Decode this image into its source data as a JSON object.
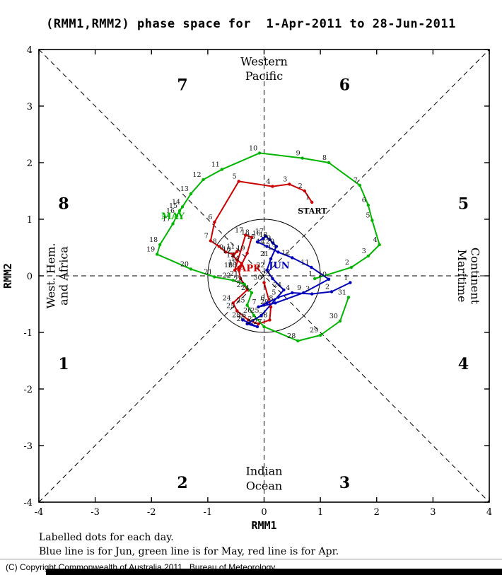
{
  "title": "(RMM1,RMM2) phase space for  1-Apr-2011 to 28-Jun-2011",
  "footer": {
    "line1": "Labelled dots for each day.",
    "line2": "Blue line is for Jun, green line is for May, red line is for Apr.",
    "copyright": "(C) Copyright Commonwealth of Australia 2011 . Bureau of Meteorology"
  },
  "chart_data": {
    "type": "line",
    "title": "(RMM1,RMM2) phase space for 1-Apr-2011 to 28-Jun-2011",
    "xlabel": "RMM1",
    "ylabel": "RMM2",
    "xlim": [
      -4,
      4
    ],
    "ylim": [
      -4,
      4
    ],
    "xticks": [
      -4,
      -3,
      -2,
      -1,
      0,
      1,
      2,
      3,
      4
    ],
    "yticks": [
      -4,
      -3,
      -2,
      -1,
      0,
      1,
      2,
      3,
      4
    ],
    "unit_circle_radius": 1,
    "grid": false,
    "phase_labels": [
      {
        "text": "1",
        "x": -3.56,
        "y": -1.55
      },
      {
        "text": "2",
        "x": -1.45,
        "y": -3.65
      },
      {
        "text": "3",
        "x": 1.43,
        "y": -3.65
      },
      {
        "text": "4",
        "x": 3.54,
        "y": -1.55
      },
      {
        "text": "5",
        "x": 3.54,
        "y": 1.28
      },
      {
        "text": "6",
        "x": 1.43,
        "y": 3.38
      },
      {
        "text": "7",
        "x": -1.45,
        "y": 3.38
      },
      {
        "text": "8",
        "x": -3.56,
        "y": 1.28
      }
    ],
    "region_labels": [
      {
        "text": "Western",
        "x": 0,
        "y": 3.72,
        "rot": 0
      },
      {
        "text": "Pacific",
        "x": 0,
        "y": 3.46,
        "rot": 0
      },
      {
        "text": "Indian",
        "x": 0,
        "y": -3.52,
        "rot": 0
      },
      {
        "text": "Ocean",
        "x": 0,
        "y": -3.78,
        "rot": 0
      },
      {
        "text": "Maritime",
        "x": 3.45,
        "y": 0,
        "rot": 90
      },
      {
        "text": "Continent",
        "x": 3.68,
        "y": 0,
        "rot": 90
      },
      {
        "text": "West. Hem.",
        "x": -3.72,
        "y": 0,
        "rot": -90
      },
      {
        "text": "and Africa",
        "x": -3.49,
        "y": 0,
        "rot": -90
      }
    ],
    "start": {
      "text": "START",
      "x": 0.6,
      "y": 1.1
    },
    "series": [
      {
        "name": "Apr",
        "label": "APR",
        "color": "#cc0000",
        "label_x": -0.25,
        "label_y": 0.08,
        "points": [
          [
            1,
            0.85,
            1.3
          ],
          [
            2,
            0.72,
            1.5
          ],
          [
            3,
            0.45,
            1.62
          ],
          [
            4,
            0.15,
            1.58
          ],
          [
            5,
            -0.45,
            1.67
          ],
          [
            6,
            -0.88,
            0.95
          ],
          [
            7,
            -0.95,
            0.62
          ],
          [
            8,
            -0.8,
            0.52
          ],
          [
            9,
            -0.68,
            0.42
          ],
          [
            10,
            -0.55,
            0.38
          ],
          [
            11,
            -0.48,
            0.43
          ],
          [
            12,
            -0.55,
            0.35
          ],
          [
            13,
            -0.48,
            0.28
          ],
          [
            14,
            -0.4,
            0.22
          ],
          [
            15,
            -0.45,
            0.15
          ],
          [
            16,
            -0.52,
            0.1
          ],
          [
            17,
            -0.33,
            0.72
          ],
          [
            18,
            -0.22,
            0.68
          ],
          [
            19,
            -0.3,
            0.4
          ],
          [
            20,
            -0.45,
            0.1
          ],
          [
            21,
            -0.42,
            -0.05
          ],
          [
            22,
            -0.35,
            -0.15
          ],
          [
            23,
            -0.3,
            -0.25
          ],
          [
            24,
            -0.55,
            -0.48
          ],
          [
            25,
            -0.48,
            -0.62
          ],
          [
            26,
            -0.28,
            -0.78
          ],
          [
            27,
            -0.1,
            -0.85
          ],
          [
            28,
            0.1,
            -0.78
          ],
          [
            29,
            0.12,
            -0.55
          ],
          [
            30,
            0.0,
            -0.12
          ]
        ]
      },
      {
        "name": "May",
        "label": "MAY",
        "color": "#00b400",
        "label_x": -1.62,
        "label_y": 1.0,
        "points": [
          [
            1,
            0.9,
            -0.05
          ],
          [
            2,
            1.55,
            0.15
          ],
          [
            3,
            1.85,
            0.35
          ],
          [
            4,
            2.05,
            0.55
          ],
          [
            5,
            1.92,
            0.98
          ],
          [
            6,
            1.85,
            1.25
          ],
          [
            7,
            1.7,
            1.6
          ],
          [
            8,
            1.15,
            2.0
          ],
          [
            9,
            0.68,
            2.08
          ],
          [
            10,
            -0.08,
            2.17
          ],
          [
            11,
            -0.75,
            1.88
          ],
          [
            12,
            -1.08,
            1.7
          ],
          [
            13,
            -1.3,
            1.45
          ],
          [
            14,
            -1.45,
            1.22
          ],
          [
            15,
            -1.5,
            1.15
          ],
          [
            16,
            -1.55,
            1.06
          ],
          [
            17,
            -1.62,
            0.92
          ],
          [
            18,
            -1.85,
            0.55
          ],
          [
            19,
            -1.9,
            0.38
          ],
          [
            20,
            -1.3,
            0.12
          ],
          [
            21,
            -0.88,
            -0.02
          ],
          [
            22,
            -0.55,
            -0.08
          ],
          [
            23,
            -0.35,
            -0.15
          ],
          [
            24,
            -0.22,
            -0.3
          ],
          [
            25,
            -0.3,
            -0.52
          ],
          [
            26,
            -0.18,
            -0.7
          ],
          [
            27,
            0.0,
            -0.9
          ],
          [
            28,
            0.6,
            -1.15
          ],
          [
            29,
            1.0,
            -1.05
          ],
          [
            30,
            1.35,
            -0.8
          ],
          [
            31,
            1.5,
            -0.38
          ]
        ]
      },
      {
        "name": "Jun",
        "label": "JUN",
        "color": "#0000bb",
        "label_x": 0.27,
        "label_y": 0.13,
        "points": [
          [
            1,
            1.53,
            -0.12
          ],
          [
            2,
            1.2,
            -0.28
          ],
          [
            3,
            0.85,
            -0.32
          ],
          [
            4,
            0.5,
            -0.3
          ],
          [
            5,
            0.25,
            -0.38
          ],
          [
            6,
            0.05,
            -0.48
          ],
          [
            7,
            -0.1,
            -0.55
          ],
          [
            8,
            0.2,
            -0.48
          ],
          [
            9,
            0.7,
            -0.3
          ],
          [
            10,
            1.15,
            -0.06
          ],
          [
            11,
            0.84,
            0.15
          ],
          [
            12,
            0.5,
            0.32
          ],
          [
            13,
            0.25,
            0.42
          ],
          [
            14,
            0.05,
            0.52
          ],
          [
            15,
            -0.12,
            0.6
          ],
          [
            16,
            -0.02,
            0.66
          ],
          [
            17,
            0.03,
            0.7
          ],
          [
            18,
            0.1,
            0.64
          ],
          [
            19,
            0.16,
            0.58
          ],
          [
            20,
            0.22,
            0.52
          ],
          [
            21,
            0.12,
            0.3
          ],
          [
            22,
            0.05,
            0.1
          ],
          [
            23,
            0.15,
            -0.05
          ],
          [
            24,
            0.35,
            -0.25
          ],
          [
            25,
            -0.05,
            -0.7
          ],
          [
            26,
            -0.3,
            -0.85
          ],
          [
            27,
            -0.12,
            -0.9
          ],
          [
            28,
            -0.38,
            -0.78
          ]
        ]
      }
    ]
  }
}
